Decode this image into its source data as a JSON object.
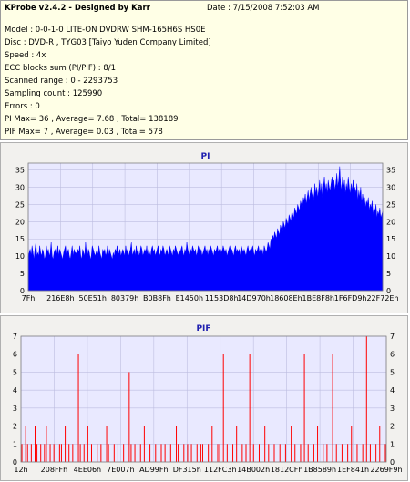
{
  "header": {
    "title": "KProbe v2.4.2 - Designed by Karr",
    "date": "Date : 7/15/2008 7:52:03 AM"
  },
  "info_lines": [
    "Model : 0-0-1-0 LITE-ON DVDRW SHM-165H6S HS0E",
    "Disc : DVD-R , TYG03 [Taiyo Yuden Company Limited]",
    "Speed : 4x",
    "ECC blocks sum (PI/PIF) : 8/1",
    "Scanned range : 0 - 2293753",
    "Sampling count : 125990",
    "Errors : 0",
    "PI Max= 36 , Average= 7.68 , Total= 138189",
    "PIF Max= 7 , Average= 0.03 , Total= 578"
  ],
  "colors": {
    "pi_fill": "#0000ff",
    "pif_bar": "#ff0000",
    "plot_bg": "#e9e9ff",
    "grid": "#bdbde0",
    "title": "#2020b0"
  },
  "chart_data": [
    {
      "type": "area",
      "title": "PI",
      "ylim": [
        0,
        37
      ],
      "yticks": [
        0,
        5,
        10,
        15,
        20,
        25,
        30,
        35
      ],
      "xticks": [
        "7Fh",
        "216E8h",
        "50E51h",
        "80379h",
        "B0B8Fh",
        "E1450h",
        "1153D8h",
        "14D970h",
        "18608Eh",
        "1BE8F8h",
        "1F6FD9h",
        "22F72Eh"
      ],
      "grid": true,
      "series": [
        {
          "values": [
            10,
            11,
            12,
            10,
            13,
            11,
            9,
            12,
            14,
            10,
            11,
            10,
            13,
            11,
            10,
            12,
            11,
            9,
            10,
            13,
            11,
            12,
            10,
            11,
            14,
            10,
            9,
            11,
            12,
            10,
            11,
            13,
            10,
            12,
            11,
            10,
            9,
            11,
            12,
            13,
            10,
            11,
            12,
            10,
            9,
            11,
            13,
            10,
            12,
            11,
            11,
            10,
            12,
            11,
            13,
            10,
            9,
            12,
            11,
            10,
            14,
            11,
            10,
            12,
            11,
            9,
            10,
            13,
            12,
            11,
            10,
            11,
            12,
            10,
            13,
            11,
            10,
            9,
            12,
            11,
            12,
            10,
            11,
            13,
            10,
            12,
            11,
            10,
            9,
            11,
            10,
            12,
            11,
            13,
            10,
            11,
            12,
            10,
            11,
            12,
            11,
            10,
            13,
            11,
            12,
            10,
            11,
            12,
            14,
            10,
            11,
            12,
            10,
            13,
            11,
            12,
            10,
            11,
            13,
            12,
            10,
            11,
            12,
            11,
            13,
            10,
            12,
            11,
            10,
            12,
            13,
            11,
            12,
            10,
            11,
            12,
            13,
            11,
            10,
            12,
            11,
            13,
            12,
            10,
            11,
            12,
            11,
            10,
            13,
            12,
            11,
            10,
            12,
            11,
            13,
            12,
            11,
            10,
            12,
            11,
            12,
            13,
            11,
            10,
            12,
            11,
            14,
            12,
            11,
            10,
            12,
            11,
            13,
            12,
            11,
            12,
            10,
            11,
            13,
            12,
            11,
            12,
            10,
            11,
            12,
            13,
            11,
            12,
            10,
            12,
            11,
            13,
            12,
            11,
            10,
            12,
            11,
            12,
            13,
            11,
            12,
            10,
            12,
            11,
            13,
            12,
            11,
            12,
            10,
            11,
            12,
            13,
            11,
            12,
            11,
            10,
            12,
            13,
            11,
            12,
            11,
            12,
            10,
            13,
            12,
            11,
            12,
            11,
            10,
            12,
            13,
            11,
            12,
            11,
            12,
            13,
            11,
            10,
            12,
            11,
            12,
            13,
            11,
            12,
            11,
            12,
            10,
            13,
            12,
            11,
            12,
            14,
            13,
            12,
            15,
            14,
            16,
            15,
            17,
            16,
            15,
            18,
            17,
            16,
            19,
            18,
            17,
            20,
            19,
            18,
            21,
            20,
            19,
            22,
            21,
            20,
            23,
            22,
            21,
            24,
            23,
            22,
            25,
            24,
            23,
            26,
            25,
            24,
            27,
            26,
            28,
            25,
            27,
            29,
            26,
            28,
            30,
            27,
            29,
            26,
            31,
            28,
            30,
            27,
            29,
            32,
            28,
            31,
            27,
            30,
            33,
            29,
            31,
            28,
            32,
            30,
            29,
            31,
            33,
            30,
            32,
            29,
            31,
            34,
            30,
            32,
            36,
            31,
            29,
            33,
            30,
            32,
            28,
            31,
            29,
            33,
            30,
            28,
            31,
            29,
            32,
            27,
            30,
            28,
            31,
            26,
            29,
            27,
            30,
            25,
            28,
            26,
            27,
            24,
            26,
            25,
            27,
            23,
            25,
            24,
            26,
            22,
            24,
            23,
            25,
            21,
            23,
            22,
            24,
            21,
            22,
            23
          ]
        }
      ]
    },
    {
      "type": "bar",
      "title": "PIF",
      "ylim": [
        0,
        7
      ],
      "yticks": [
        0,
        1,
        2,
        3,
        4,
        5,
        6,
        7
      ],
      "xticks": [
        "12h",
        "208FFh",
        "4EE06h",
        "7E007h",
        "AD99Fh",
        "DF315h",
        "112FC3h",
        "14B002h",
        "1812CFh",
        "1B8589h",
        "1EF841h",
        "2269F9h"
      ],
      "grid": true,
      "series": [
        {
          "values": [
            1,
            0,
            2,
            1,
            0,
            1,
            0,
            2,
            1,
            0,
            1,
            0,
            1,
            2,
            0,
            1,
            0,
            1,
            0,
            0,
            1,
            1,
            0,
            2,
            0,
            1,
            0,
            1,
            0,
            0,
            6,
            1,
            0,
            1,
            0,
            2,
            0,
            1,
            0,
            0,
            1,
            0,
            1,
            0,
            0,
            2,
            1,
            0,
            0,
            1,
            0,
            1,
            0,
            0,
            1,
            0,
            0,
            5,
            1,
            0,
            1,
            0,
            0,
            1,
            0,
            2,
            0,
            0,
            1,
            0,
            0,
            1,
            0,
            0,
            1,
            0,
            1,
            0,
            0,
            1,
            0,
            0,
            2,
            1,
            0,
            0,
            1,
            0,
            1,
            0,
            1,
            0,
            0,
            1,
            0,
            1,
            1,
            0,
            0,
            1,
            0,
            2,
            0,
            0,
            1,
            1,
            0,
            6,
            0,
            1,
            0,
            0,
            1,
            0,
            2,
            0,
            0,
            1,
            0,
            1,
            0,
            6,
            0,
            1,
            0,
            0,
            1,
            0,
            0,
            2,
            0,
            1,
            0,
            0,
            1,
            0,
            0,
            1,
            0,
            0,
            1,
            0,
            0,
            2,
            0,
            1,
            0,
            0,
            1,
            0,
            6,
            0,
            1,
            0,
            0,
            1,
            0,
            2,
            0,
            0,
            1,
            0,
            1,
            0,
            0,
            6,
            0,
            1,
            0,
            0,
            1,
            0,
            0,
            1,
            0,
            2,
            0,
            0,
            1,
            0,
            0,
            1,
            0,
            7,
            0,
            1,
            0,
            0,
            1,
            0,
            2,
            0,
            0,
            1
          ]
        }
      ]
    }
  ]
}
